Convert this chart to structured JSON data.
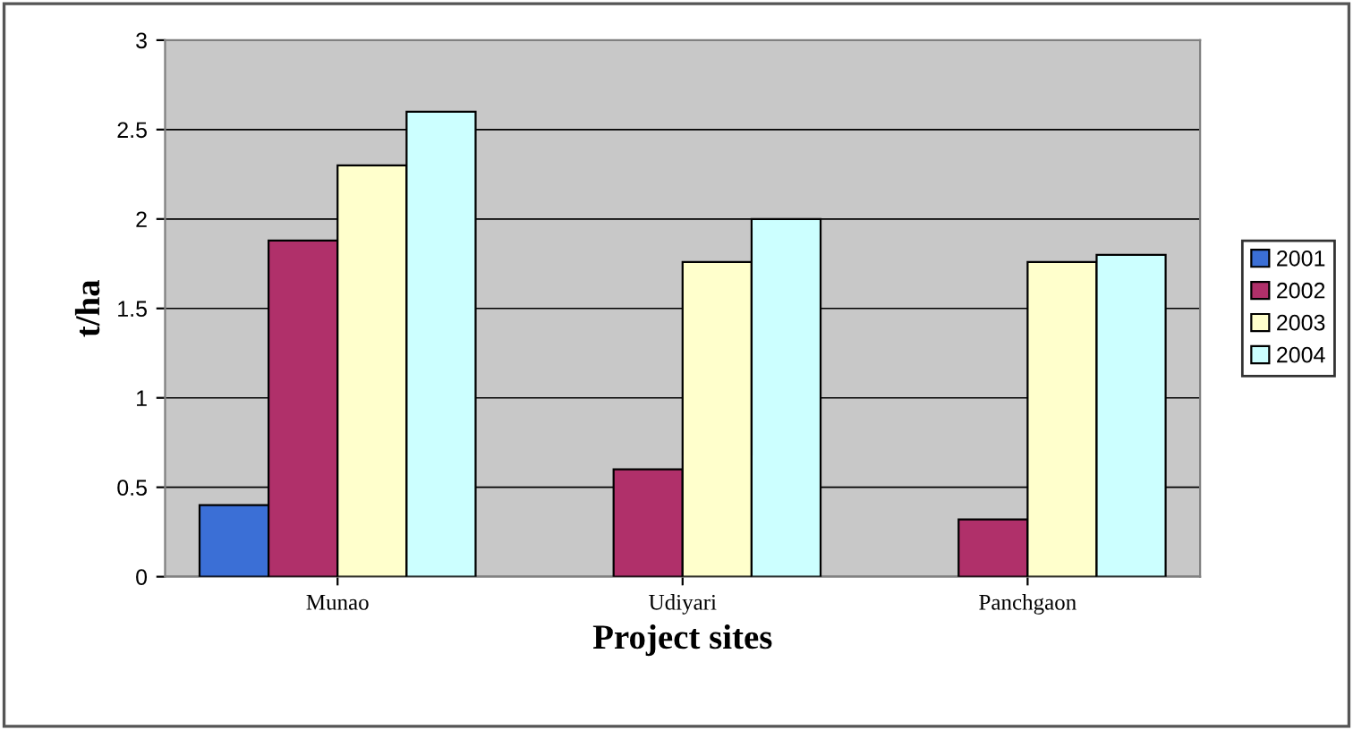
{
  "chart_data": {
    "type": "bar",
    "xlabel": "Project sites",
    "ylabel": "t/ha",
    "categories": [
      "Munao",
      "Udiyari",
      "Panchgaon"
    ],
    "series": [
      {
        "name": "2001",
        "color": "#3b6fd6",
        "values": [
          0.4,
          null,
          null
        ]
      },
      {
        "name": "2002",
        "color": "#b0306a",
        "values": [
          1.88,
          0.6,
          0.32
        ]
      },
      {
        "name": "2003",
        "color": "#ffffcc",
        "values": [
          2.3,
          1.76,
          1.76
        ]
      },
      {
        "name": "2004",
        "color": "#ccffff",
        "values": [
          2.6,
          2.0,
          1.8
        ]
      }
    ],
    "ylim": [
      0,
      3
    ],
    "yticks": [
      0,
      0.5,
      1,
      1.5,
      2,
      2.5,
      3
    ],
    "grid": "y",
    "legend": "right"
  }
}
